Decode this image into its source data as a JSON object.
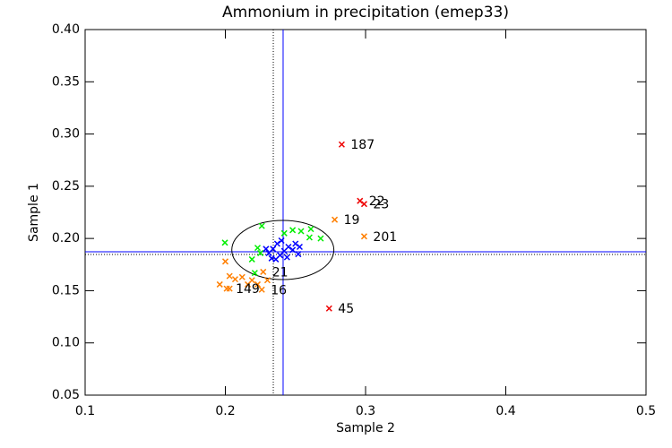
{
  "chart_data": {
    "type": "scatter",
    "title": "Ammonium in precipitation (emep33)",
    "x_label": "Sample 2",
    "y_label": "Sample 1",
    "xlim": [
      0.1,
      0.5
    ],
    "ylim": [
      0.05,
      0.4
    ],
    "xticks": [
      0.1,
      0.2,
      0.3,
      0.4,
      0.5
    ],
    "yticks": [
      {
        "value": 0.05,
        "label": "0.05"
      },
      {
        "value": 0.1,
        "label": "0.10"
      },
      {
        "value": 0.15,
        "label": "0.15"
      },
      {
        "value": 0.2,
        "label": "0.20"
      },
      {
        "value": 0.25,
        "label": "0.25"
      },
      {
        "value": 0.3,
        "label": "0.30"
      },
      {
        "value": 0.35,
        "label": "0.35"
      },
      {
        "value": 0.4,
        "label": "0.40"
      }
    ],
    "reference_lines": [
      {
        "axis": "x",
        "value": 0.2412,
        "style": "solid",
        "color": "#0000ff"
      },
      {
        "axis": "x",
        "value": 0.2342,
        "style": "dotted",
        "color": "#000000"
      },
      {
        "axis": "y",
        "value": 0.1873,
        "style": "solid",
        "color": "#0000ff"
      },
      {
        "axis": "y",
        "value": 0.1847,
        "style": "dotted",
        "color": "#000000"
      }
    ],
    "ellipse": {
      "center": [
        0.241,
        0.189
      ],
      "radii": [
        0.0364,
        0.0283
      ],
      "color": "#000000"
    },
    "series": [
      {
        "color": "#ff7f00",
        "x": [
          0.2,
          0.196,
          0.203,
          0.207,
          0.212,
          0.216,
          0.219,
          0.223,
          0.23,
          0.203,
          0.201,
          0.226,
          0.227,
          0.278,
          0.299
        ],
        "y": [
          0.178,
          0.156,
          0.152,
          0.161,
          0.163,
          0.156,
          0.16,
          0.156,
          0.16,
          0.164,
          0.152,
          0.151,
          0.168,
          0.218,
          0.202
        ],
        "labels": [
          null,
          null,
          null,
          null,
          null,
          null,
          null,
          null,
          null,
          null,
          "149",
          "16",
          "21",
          "19",
          "201"
        ]
      },
      {
        "color": "#00ee00",
        "x": [
          0.1997,
          0.223,
          0.226,
          0.242,
          0.248,
          0.254,
          0.26,
          0.268,
          0.219,
          0.221,
          0.225,
          0.261
        ],
        "y": [
          0.196,
          0.191,
          0.212,
          0.205,
          0.208,
          0.207,
          0.201,
          0.2,
          0.18,
          0.167,
          0.186,
          0.209
        ]
      },
      {
        "color": "#0000ff",
        "x": [
          0.231,
          0.234,
          0.237,
          0.239,
          0.242,
          0.245,
          0.248,
          0.25,
          0.253,
          0.233,
          0.236,
          0.229,
          0.244,
          0.252,
          0.24
        ],
        "y": [
          0.186,
          0.19,
          0.195,
          0.184,
          0.188,
          0.192,
          0.189,
          0.195,
          0.192,
          0.181,
          0.18,
          0.19,
          0.182,
          0.185,
          0.198
        ]
      },
      {
        "color": "#ee0000",
        "x": [
          0.283,
          0.296,
          0.299,
          0.274
        ],
        "y": [
          0.29,
          0.236,
          0.233,
          0.133
        ],
        "labels": [
          "187",
          "22",
          "23",
          "45"
        ]
      }
    ]
  }
}
